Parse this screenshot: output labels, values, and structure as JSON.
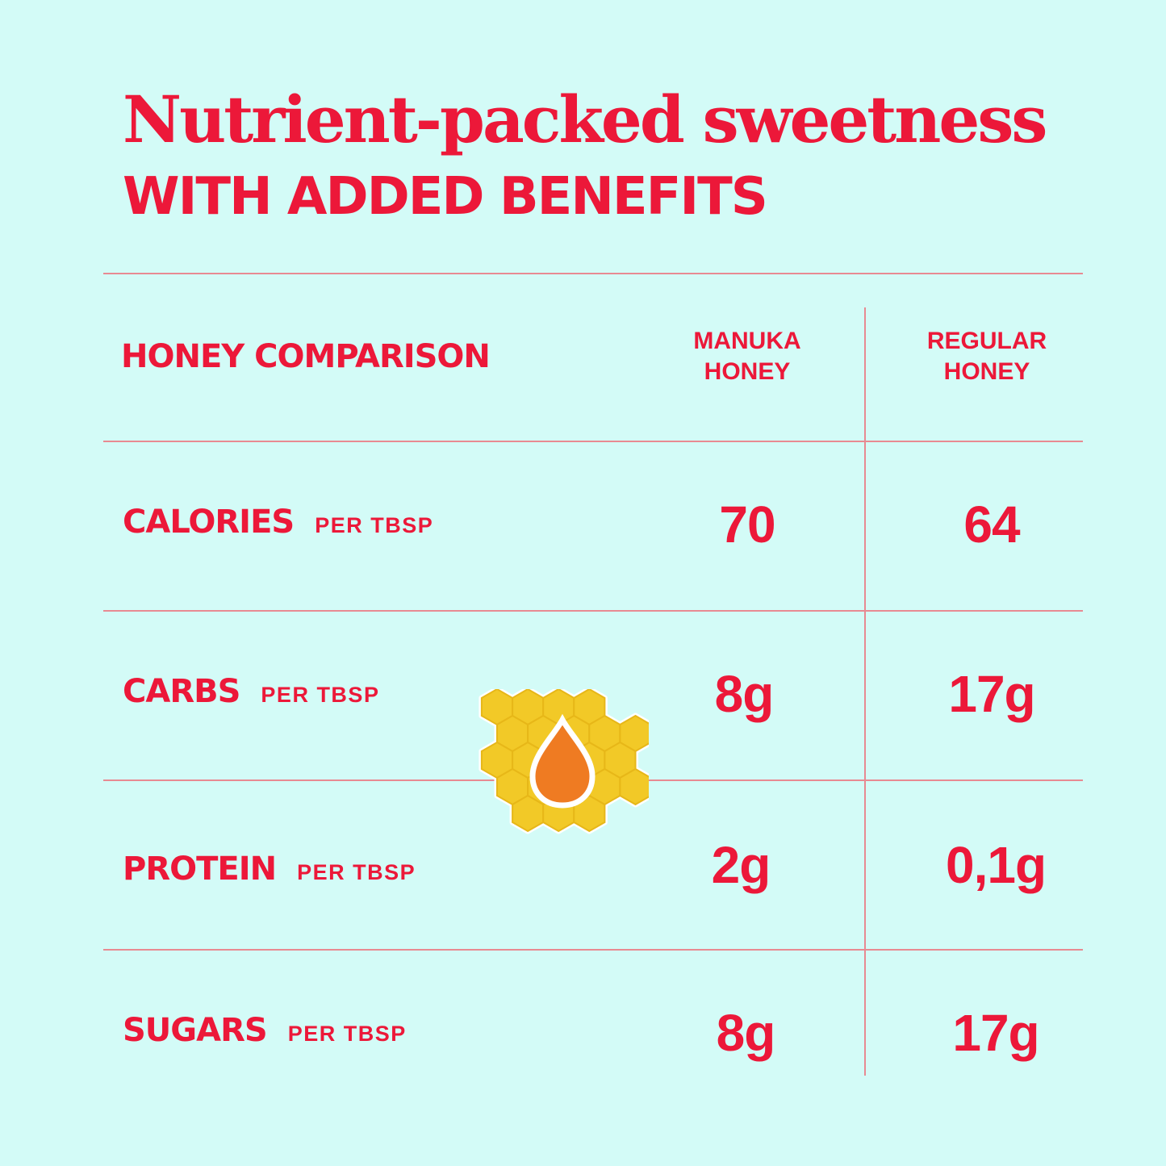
{
  "header": {
    "title": "Nutrient-packed sweetness",
    "subtitle": "WITH ADDED BENEFITS"
  },
  "table": {
    "heading": "HONEY COMPARISON",
    "columns": [
      {
        "line1": "MANUKA",
        "line2": "HONEY"
      },
      {
        "line1": "REGULAR",
        "line2": "HONEY"
      }
    ],
    "rows": [
      {
        "label": "CALORIES",
        "unit": "PER TBSP",
        "manuka": "70",
        "regular": "64"
      },
      {
        "label": "CARBS",
        "unit": "PER TBSP",
        "manuka": "8g",
        "regular": "17g"
      },
      {
        "label": "PROTEIN",
        "unit": "PER TBSP",
        "manuka": "2g",
        "regular": "0,1g"
      },
      {
        "label": "SUGARS",
        "unit": "PER TBSP",
        "manuka": "8g",
        "regular": "17g"
      }
    ]
  },
  "icons": {
    "honeycomb": "honeycomb-drop-icon"
  },
  "colors": {
    "background": "#d3fbf7",
    "text": "#ec1839",
    "divider": "#e88a92",
    "honeycomb": "#f2c927",
    "drop": "#ef7b22"
  }
}
